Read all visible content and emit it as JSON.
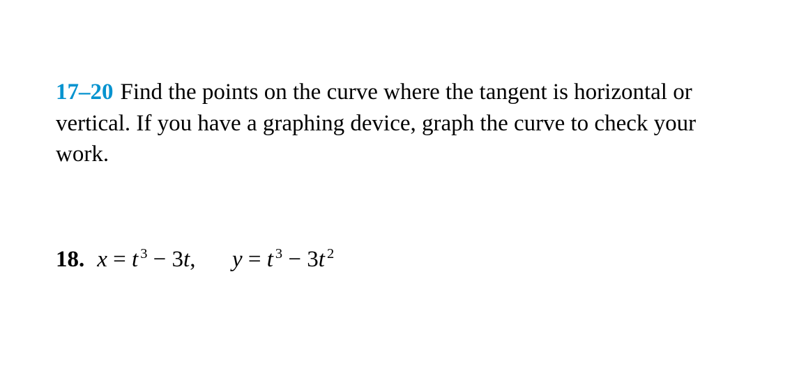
{
  "background_color": "#ffffff",
  "text_color": "#000000",
  "accent_color": "#0693cf",
  "font_family": "Georgia, 'Times New Roman', Times, serif",
  "font_size_pt": 24,
  "instruction_block": {
    "range_label": "17–20",
    "text": "Find the points on the curve where the tangent is hori­zontal or vertical. If you have a graphing device, graph the curve to check your work."
  },
  "problem": {
    "number_label": "18.",
    "equations": {
      "x_lhs": "x",
      "x_rhs_term1_base": "t",
      "x_rhs_term1_exp": "3",
      "x_rhs_op": "−",
      "x_rhs_term2_coef": "3",
      "x_rhs_term2_var": "t",
      "y_lhs": "y",
      "y_rhs_term1_base": "t",
      "y_rhs_term1_exp": "3",
      "y_rhs_op": "−",
      "y_rhs_term2_coef": "3",
      "y_rhs_term2_var": "t",
      "y_rhs_term2_exp": "2",
      "separator": ","
    }
  }
}
